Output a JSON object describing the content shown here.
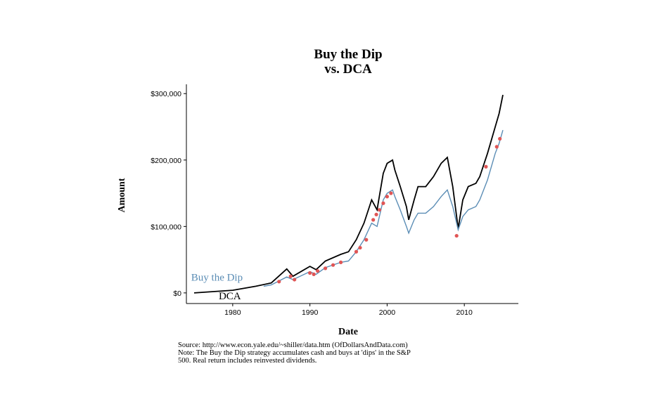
{
  "chart_data": {
    "type": "line",
    "title_lines": [
      "Buy the Dip",
      "vs. DCA"
    ],
    "x_label": "Date",
    "y_label": "Amount",
    "notes": [
      "Source:  http://www.econ.yale.edu/~shiller/data.htm (OfDollarsAndData.com)",
      "Note: The Buy the Dip strategy accumulates cash and buys at 'dips' in the S&P",
      "500. Real return includes reinvested dividends."
    ],
    "xlim": [
      1974,
      2017
    ],
    "xticks": [
      1980,
      1990,
      2000,
      2010
    ],
    "ylim": [
      -16000,
      314000
    ],
    "yticks": [
      {
        "value": 0,
        "label": "$0"
      },
      {
        "value": 100000,
        "label": "$100,000"
      },
      {
        "value": 200000,
        "label": "$200,000"
      },
      {
        "value": 300000,
        "label": "$300,000"
      }
    ],
    "grid": false,
    "series": [
      {
        "name": "DCA",
        "color": "#000000",
        "x": [
          1975,
          1980,
          1983,
          1985,
          1987,
          1987.8,
          1990,
          1990.8,
          1992,
          1994,
          1995,
          1996,
          1997,
          1998,
          1998.7,
          1999.5,
          2000,
          2000.7,
          2001,
          2001.7,
          2002.5,
          2002.8,
          2003.5,
          2004,
          2005,
          2006,
          2007,
          2007.8,
          2008.5,
          2009.2,
          2009.8,
          2010.5,
          2011.5,
          2012,
          2013,
          2014,
          2014.5,
          2015
        ],
        "values": [
          0,
          4000,
          10000,
          15000,
          36000,
          25000,
          40000,
          35000,
          48000,
          58000,
          62000,
          80000,
          105000,
          140000,
          125000,
          180000,
          195000,
          200000,
          185000,
          160000,
          130000,
          110000,
          140000,
          160000,
          160000,
          175000,
          195000,
          204000,
          160000,
          97000,
          140000,
          160000,
          165000,
          175000,
          210000,
          250000,
          270000,
          298000
        ]
      },
      {
        "name": "Buy the Dip",
        "color": "#5b8db5",
        "x": [
          1984,
          1985,
          1987,
          1987.8,
          1990,
          1990.8,
          1992,
          1994,
          1995,
          1996,
          1997,
          1998,
          1998.7,
          1999.5,
          2000,
          2000.7,
          2001,
          2001.7,
          2002.5,
          2002.8,
          2003.5,
          2004,
          2005,
          2006,
          2007,
          2007.8,
          2008.5,
          2009.2,
          2009.8,
          2010.5,
          2011.5,
          2012,
          2013,
          2014,
          2014.5,
          2015
        ],
        "values": [
          10000,
          12000,
          24000,
          20000,
          32000,
          28000,
          38000,
          46000,
          48000,
          62000,
          80000,
          105000,
          100000,
          140000,
          150000,
          155000,
          145000,
          125000,
          100000,
          90000,
          110000,
          120000,
          120000,
          130000,
          145000,
          155000,
          130000,
          95000,
          115000,
          125000,
          130000,
          140000,
          170000,
          210000,
          225000,
          245000
        ]
      }
    ],
    "dips": {
      "color": "#e05555",
      "x": [
        1986,
        1987.5,
        1988,
        1990,
        1990.5,
        1991,
        1992,
        1993,
        1994,
        1996,
        1996.5,
        1997.3,
        1998.2,
        1998.6,
        1999,
        1999.5,
        2000,
        2000.5,
        2009,
        2012.8,
        2014.2,
        2014.6
      ],
      "values": [
        17000,
        25000,
        20000,
        30000,
        28000,
        33000,
        37000,
        42000,
        46000,
        62000,
        68000,
        80000,
        110000,
        118000,
        125000,
        135000,
        145000,
        150000,
        86000,
        190000,
        220000,
        232000
      ]
    }
  }
}
